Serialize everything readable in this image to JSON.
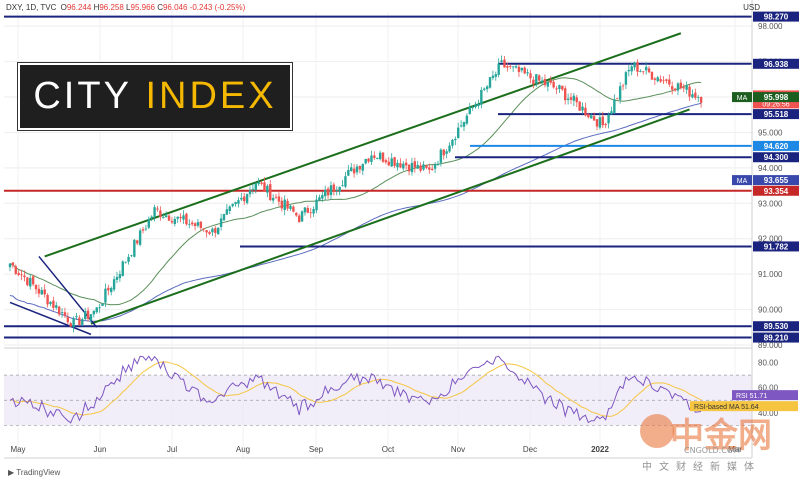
{
  "header": {
    "symbol": "DXY, 1D, TVC",
    "open_label": "O",
    "open": "96.244",
    "high_label": "H",
    "high": "96.258",
    "low_label": "L",
    "low": "95.966",
    "close_label": "C",
    "close": "96.046",
    "change": "-0.243 (-0.25%)"
  },
  "currency": "USD",
  "branding": {
    "part1": "CITY",
    "part2": "INDEX"
  },
  "tradingview_label": "TradingView",
  "watermark": {
    "name": "中金网",
    "sub": "中文财经新媒体",
    "site": "CNGOLD.COM"
  },
  "colors": {
    "up": "#26a69a",
    "down": "#ef5350",
    "channel": "#1b6e1b",
    "navy": "#1a237e",
    "red_line": "#c62828",
    "blue_line": "#1e88e5",
    "ma_green": "#5a8f5a",
    "ma_blue": "#5c6bc0",
    "rsi": "#7e57c2",
    "rsi_ma": "#f5c542",
    "current_price": "#ef5350"
  },
  "chart_data": {
    "type": "candlestick",
    "x_ticks": [
      "May",
      "Jun",
      "Jul",
      "Aug",
      "Sep",
      "Oct",
      "Nov",
      "Dec",
      "2022",
      "Mar"
    ],
    "y_ticks": [
      "98.000",
      "97.000",
      "96.000",
      "95.000",
      "94.000",
      "93.000",
      "92.000",
      "91.000",
      "90.000",
      "89.000"
    ],
    "ylim": [
      89.0,
      98.4
    ],
    "horizontal_levels": [
      {
        "value": 98.27,
        "label": "98.270",
        "color": "navy"
      },
      {
        "value": 96.938,
        "label": "96.938",
        "color": "navy"
      },
      {
        "value": 95.518,
        "label": "95.518",
        "color": "navy"
      },
      {
        "value": 94.62,
        "label": "94.620",
        "color": "blue_line"
      },
      {
        "value": 94.3,
        "label": "94.300",
        "color": "navy"
      },
      {
        "value": 93.354,
        "label": "93.354",
        "color": "red_line"
      },
      {
        "value": 91.782,
        "label": "91.782",
        "color": "navy"
      },
      {
        "value": 89.53,
        "label": "89.530",
        "color": "navy"
      },
      {
        "value": 89.21,
        "label": "89.210",
        "color": "navy"
      }
    ],
    "price_tags": [
      {
        "value": 96.046,
        "label": "96.046",
        "sub": "09:26:56",
        "kind": "current"
      },
      {
        "value": 95.998,
        "label": "95.998",
        "badge": "MA",
        "kind": "ma_green"
      },
      {
        "value": 93.655,
        "label": "93.655",
        "badge": "MA",
        "kind": "ma_blue"
      }
    ],
    "key_points": [
      {
        "date": "May",
        "value": 91.3
      },
      {
        "date": "late May",
        "value": 89.6
      },
      {
        "date": "Jun",
        "value": 90.0
      },
      {
        "date": "Jul",
        "value": 92.8
      },
      {
        "date": "Aug",
        "value": 92.2
      },
      {
        "date": "Aug end",
        "value": 93.6
      },
      {
        "date": "Sep",
        "value": 92.6
      },
      {
        "date": "Oct",
        "value": 94.4
      },
      {
        "date": "Nov start",
        "value": 93.9
      },
      {
        "date": "Nov end",
        "value": 96.9
      },
      {
        "date": "Dec",
        "value": 96.2
      },
      {
        "date": "Jan",
        "value": 95.2
      },
      {
        "date": "Feb",
        "value": 96.9
      },
      {
        "date": "Mar",
        "value": 96.0
      }
    ],
    "rsi_panel": {
      "y_ticks": [
        "80.00",
        "60.00",
        "40.00"
      ],
      "rsi_label": "RSI",
      "rsi_value": "51.71",
      "rsi_ma_label": "RSI-based MA",
      "rsi_ma_value": "51.64"
    }
  }
}
